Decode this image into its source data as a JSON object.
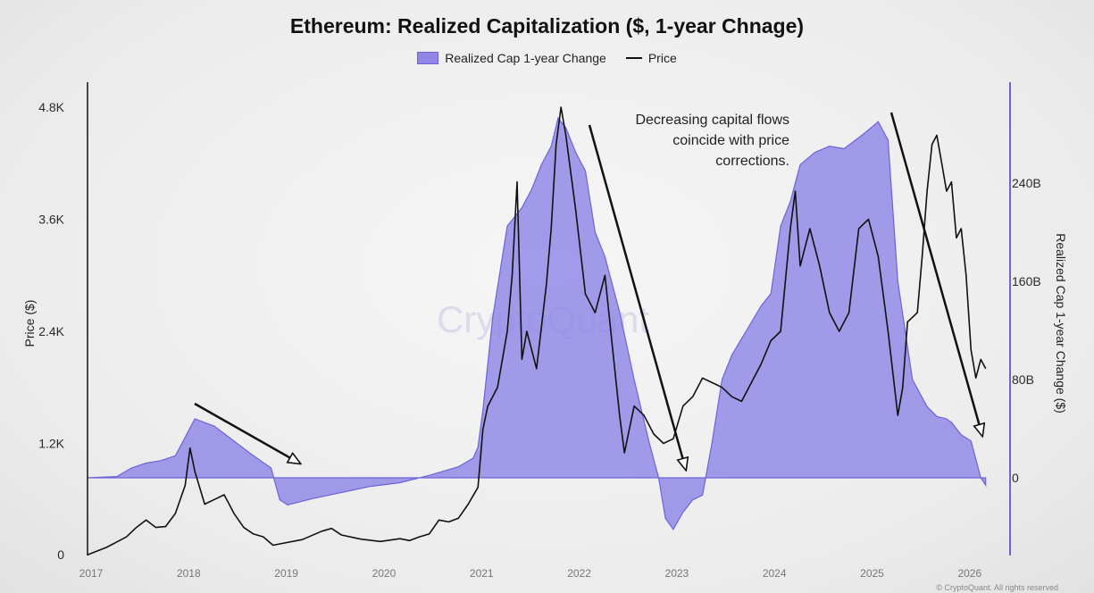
{
  "chart_data": {
    "type": "area",
    "title": "Ethereum: Realized Capitalization ($, 1-year Chnage)",
    "legend": {
      "placement": "top-center",
      "items": [
        "Realized Cap 1-year Change",
        "Price"
      ]
    },
    "x_ticks": [
      "2017",
      "2018",
      "2019",
      "2020",
      "2021",
      "2022",
      "2023",
      "2024",
      "2025",
      "2026"
    ],
    "y_left": {
      "label": "Price ($)",
      "ticks": [
        "0",
        "1.2K",
        "2.4K",
        "3.6K",
        "4.8K"
      ],
      "tick_values": [
        0,
        1200,
        2400,
        3600,
        4800
      ],
      "range": [
        0,
        4800
      ]
    },
    "y_right": {
      "label": "Realized Cap 1-year Change ($)",
      "ticks": [
        "0",
        "80B",
        "160B",
        "240B"
      ],
      "tick_values": [
        0,
        80,
        160,
        240
      ],
      "unit": "B",
      "range": [
        -50,
        290
      ]
    },
    "annotation": [
      "Decreasing capital flows",
      "coincide with price",
      "corrections."
    ],
    "watermark": "CryptoQuant",
    "footer": "© CryptoQuant. All rights reserved",
    "colors": {
      "area_fill": "#8f86e6",
      "area_stroke": "#6d63d9",
      "price_line": "#111111"
    },
    "series": [
      {
        "name": "Realized Cap 1-year Change",
        "unit": "B USD",
        "x": [
          2017.0,
          2017.3,
          2017.45,
          2017.6,
          2017.75,
          2017.9,
          2018.0,
          2018.1,
          2018.3,
          2018.5,
          2018.7,
          2018.88,
          2018.97,
          2019.05,
          2019.3,
          2019.6,
          2019.9,
          2020.2,
          2020.5,
          2020.8,
          2020.95,
          2021.0,
          2021.05,
          2021.15,
          2021.3,
          2021.45,
          2021.55,
          2021.65,
          2021.75,
          2021.82,
          2021.9,
          2022.0,
          2022.1,
          2022.2,
          2022.3,
          2022.45,
          2022.6,
          2022.75,
          2022.85,
          2022.92,
          2023.0,
          2023.1,
          2023.2,
          2023.3,
          2023.4,
          2023.5,
          2023.6,
          2023.75,
          2023.9,
          2024.0,
          2024.1,
          2024.2,
          2024.3,
          2024.45,
          2024.6,
          2024.75,
          2024.95,
          2025.1,
          2025.2,
          2025.3,
          2025.45,
          2025.6,
          2025.7,
          2025.8,
          2025.85,
          2025.95,
          2026.05,
          2026.15,
          2026.2
        ],
        "values": [
          0,
          1,
          8,
          12,
          14,
          18,
          33,
          48,
          42,
          30,
          18,
          8,
          -18,
          -22,
          -17,
          -12,
          -7,
          -4,
          2,
          9,
          16,
          25,
          55,
          130,
          205,
          220,
          235,
          255,
          270,
          293,
          285,
          265,
          250,
          200,
          180,
          135,
          80,
          30,
          0,
          -33,
          -42,
          -28,
          -18,
          -14,
          30,
          80,
          100,
          120,
          140,
          150,
          205,
          225,
          255,
          265,
          270,
          268,
          280,
          290,
          275,
          160,
          80,
          58,
          50,
          48,
          45,
          35,
          30,
          0,
          -6
        ]
      },
      {
        "name": "Price",
        "unit": "USD",
        "x": [
          2017.0,
          2017.2,
          2017.4,
          2017.5,
          2017.6,
          2017.7,
          2017.8,
          2017.9,
          2018.0,
          2018.05,
          2018.1,
          2018.2,
          2018.3,
          2018.4,
          2018.5,
          2018.6,
          2018.7,
          2018.8,
          2018.9,
          2019.0,
          2019.2,
          2019.4,
          2019.5,
          2019.6,
          2019.8,
          2020.0,
          2020.2,
          2020.3,
          2020.4,
          2020.5,
          2020.6,
          2020.7,
          2020.8,
          2020.9,
          2021.0,
          2021.05,
          2021.1,
          2021.2,
          2021.3,
          2021.35,
          2021.4,
          2021.45,
          2021.5,
          2021.6,
          2021.7,
          2021.75,
          2021.8,
          2021.85,
          2021.9,
          2022.0,
          2022.1,
          2022.2,
          2022.3,
          2022.4,
          2022.45,
          2022.5,
          2022.6,
          2022.7,
          2022.8,
          2022.9,
          2023.0,
          2023.1,
          2023.2,
          2023.3,
          2023.4,
          2023.5,
          2023.6,
          2023.7,
          2023.8,
          2023.9,
          2024.0,
          2024.1,
          2024.2,
          2024.25,
          2024.3,
          2024.4,
          2024.5,
          2024.6,
          2024.7,
          2024.8,
          2024.9,
          2025.0,
          2025.1,
          2025.2,
          2025.3,
          2025.35,
          2025.4,
          2025.5,
          2025.55,
          2025.6,
          2025.65,
          2025.7,
          2025.75,
          2025.8,
          2025.85,
          2025.9,
          2025.95,
          2026.0,
          2026.05,
          2026.1,
          2026.15,
          2026.2
        ],
        "values": [
          8,
          90,
          200,
          300,
          380,
          300,
          310,
          450,
          750,
          1150,
          900,
          550,
          600,
          650,
          450,
          300,
          230,
          200,
          110,
          130,
          170,
          260,
          290,
          220,
          175,
          150,
          180,
          160,
          200,
          230,
          380,
          360,
          400,
          550,
          730,
          1350,
          1600,
          1800,
          2400,
          3000,
          4000,
          2100,
          2400,
          2000,
          2900,
          3500,
          4400,
          4800,
          4500,
          3700,
          2800,
          2600,
          3000,
          2000,
          1500,
          1100,
          1600,
          1500,
          1300,
          1200,
          1250,
          1600,
          1700,
          1900,
          1850,
          1800,
          1700,
          1650,
          1850,
          2050,
          2300,
          2400,
          3500,
          3900,
          3100,
          3500,
          3100,
          2600,
          2400,
          2600,
          3500,
          3600,
          3200,
          2400,
          1500,
          1800,
          2500,
          2600,
          3200,
          3900,
          4400,
          4500,
          4200,
          3900,
          4000,
          3400,
          3500,
          3000,
          2200,
          1900,
          2100,
          2000
        ]
      }
    ]
  }
}
